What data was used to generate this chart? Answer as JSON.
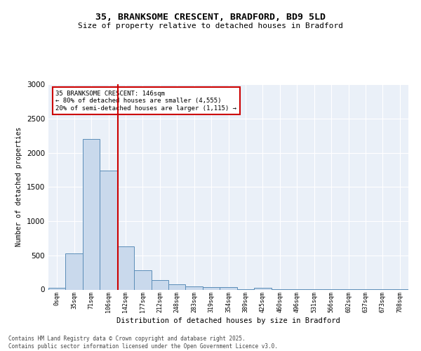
{
  "title1": "35, BRANKSOME CRESCENT, BRADFORD, BD9 5LD",
  "title2": "Size of property relative to detached houses in Bradford",
  "xlabel": "Distribution of detached houses by size in Bradford",
  "ylabel": "Number of detached properties",
  "bar_labels": [
    "0sqm",
    "35sqm",
    "71sqm",
    "106sqm",
    "142sqm",
    "177sqm",
    "212sqm",
    "248sqm",
    "283sqm",
    "319sqm",
    "354sqm",
    "389sqm",
    "425sqm",
    "460sqm",
    "496sqm",
    "531sqm",
    "566sqm",
    "602sqm",
    "637sqm",
    "673sqm",
    "708sqm"
  ],
  "bar_values": [
    25,
    530,
    2200,
    1740,
    630,
    280,
    140,
    75,
    50,
    35,
    35,
    5,
    30,
    5,
    5,
    2,
    2,
    2,
    2,
    2,
    2
  ],
  "bar_color": "#c9d9ec",
  "bar_edge_color": "#5b8db8",
  "vline_x": 3.57,
  "vline_color": "#cc0000",
  "annotation_text": "35 BRANKSOME CRESCENT: 146sqm\n← 80% of detached houses are smaller (4,555)\n20% of semi-detached houses are larger (1,115) →",
  "annotation_box_color": "#cc0000",
  "ylim": [
    0,
    3000
  ],
  "yticks": [
    0,
    500,
    1000,
    1500,
    2000,
    2500,
    3000
  ],
  "bg_color": "#eaf0f8",
  "grid_color": "#ffffff",
  "footer": "Contains HM Land Registry data © Crown copyright and database right 2025.\nContains public sector information licensed under the Open Government Licence v3.0."
}
